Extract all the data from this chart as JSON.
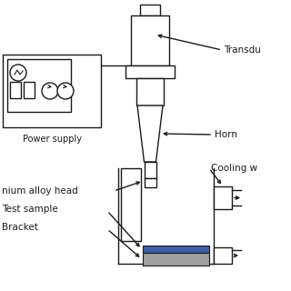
{
  "bg_color": "#ffffff",
  "line_color": "#1a1a1a",
  "gray_color": "#a0a0a0",
  "blue_color": "#3a5faa",
  "labels": {
    "transducer": "Transdu",
    "horn": "Horn",
    "cooling": "Cooling w",
    "titanium": "nium alloy head",
    "test_sample": "Test sample",
    "bracket": "Bracket",
    "power_supply": "Power supply"
  },
  "figsize": [
    3.2,
    3.2
  ],
  "dpi": 100
}
